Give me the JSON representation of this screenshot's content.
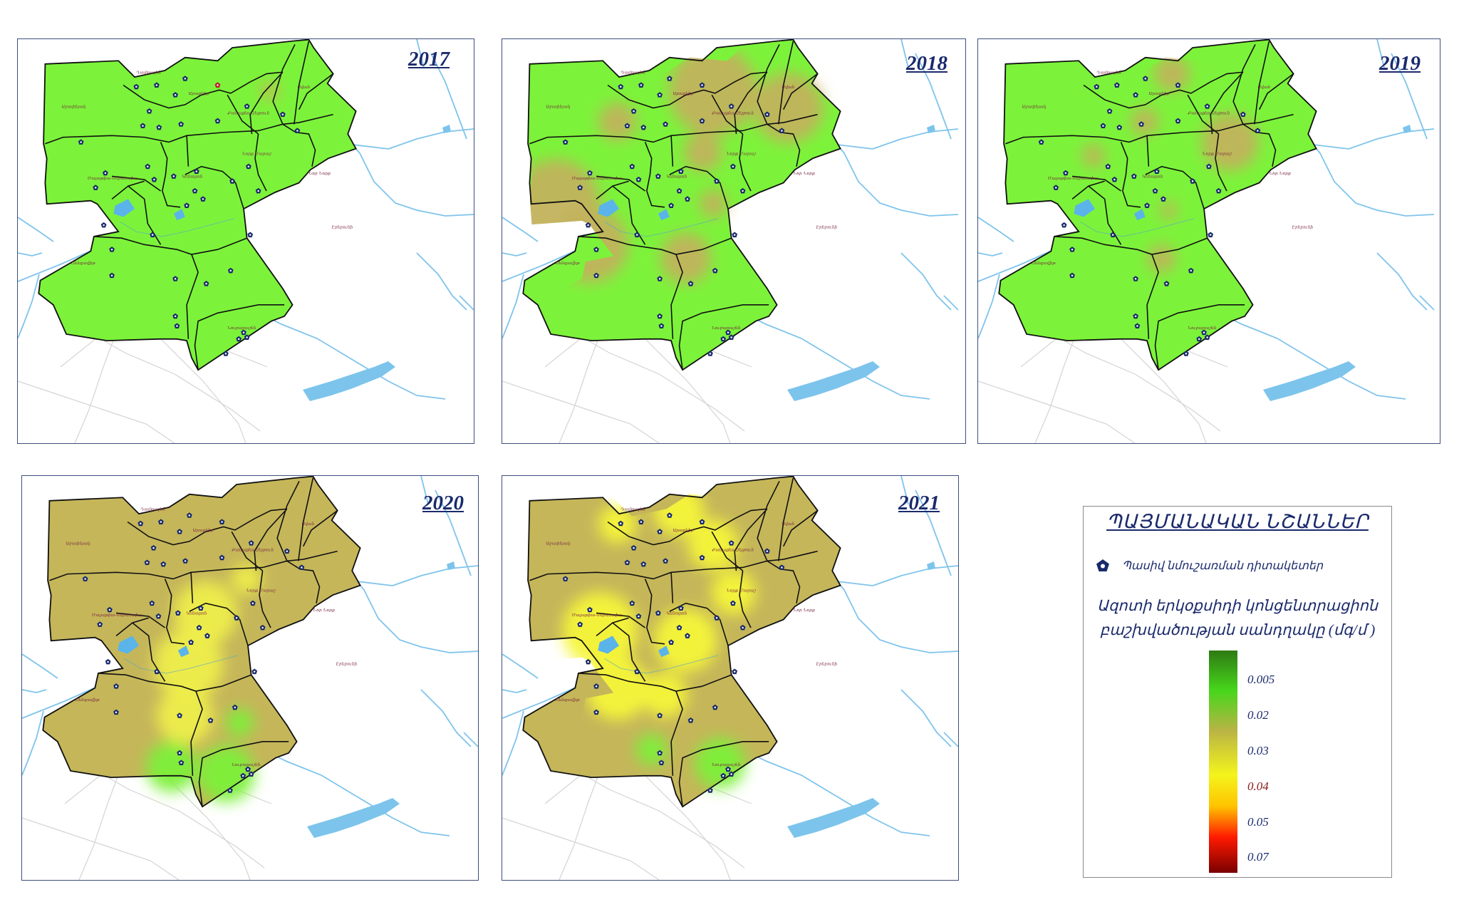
{
  "panels": [
    {
      "year": "2017",
      "base": "#7cf33a",
      "blobs": [
        [
          0.7,
          0.15,
          14,
          "#c8b45a"
        ]
      ],
      "redSensor": true
    },
    {
      "year": "2018",
      "base": "#7cf33a",
      "blobs": [
        [
          0.58,
          0.15,
          70,
          "#c2b25c"
        ],
        [
          0.8,
          0.2,
          55,
          "#c2b25c"
        ],
        [
          0.3,
          0.24,
          30,
          "#c2b25c"
        ],
        [
          0.12,
          0.48,
          70,
          "#c2b25c"
        ],
        [
          0.22,
          0.6,
          60,
          "#c2b25c"
        ],
        [
          0.55,
          0.33,
          30,
          "#c2b25c"
        ],
        [
          0.58,
          0.48,
          22,
          "#c2b25c"
        ],
        [
          0.5,
          0.64,
          40,
          "#c2b25c"
        ]
      ],
      "redSensor": false
    },
    {
      "year": "2019",
      "base": "#7cf33a",
      "blobs": [
        [
          0.53,
          0.1,
          28,
          "#c2b25c"
        ],
        [
          0.45,
          0.24,
          22,
          "#c2b25c"
        ],
        [
          0.7,
          0.3,
          45,
          "#c2b25c"
        ],
        [
          0.3,
          0.34,
          18,
          "#c2b25c"
        ],
        [
          0.52,
          0.5,
          14,
          "#c2b25c"
        ],
        [
          0.5,
          0.64,
          22,
          "#c2b25c"
        ]
      ],
      "redSensor": false
    },
    {
      "year": "2020",
      "base": "#c5b65a",
      "blobs": [
        [
          0.5,
          0.4,
          50,
          "#eeee4c"
        ],
        [
          0.45,
          0.55,
          55,
          "#eeee4c"
        ],
        [
          0.44,
          0.7,
          45,
          "#eeee4c"
        ],
        [
          0.62,
          0.3,
          24,
          "#eeee4c"
        ],
        [
          0.4,
          0.85,
          40,
          "#7cf03a"
        ],
        [
          0.56,
          0.87,
          45,
          "#7cf03a"
        ],
        [
          0.6,
          0.72,
          22,
          "#7cf03a"
        ]
      ],
      "redSensor": false
    },
    {
      "year": "2021",
      "base": "#c5b65a",
      "blobs": [
        [
          0.48,
          0.1,
          40,
          "#f6f63a"
        ],
        [
          0.3,
          0.14,
          30,
          "#f6f63a"
        ],
        [
          0.58,
          0.2,
          40,
          "#f6f63a"
        ],
        [
          0.64,
          0.34,
          35,
          "#f6f63a"
        ],
        [
          0.25,
          0.45,
          60,
          "#f6f63a"
        ],
        [
          0.5,
          0.48,
          50,
          "#f6f63a"
        ],
        [
          0.3,
          0.62,
          50,
          "#f6f63a"
        ],
        [
          0.44,
          0.64,
          35,
          "#f6f63a"
        ],
        [
          0.4,
          0.8,
          25,
          "#7cf03a"
        ],
        [
          0.6,
          0.84,
          40,
          "#7cf03a"
        ]
      ],
      "redSensor": false
    }
  ],
  "districts": [
    "Աջափնյակ",
    "Դավթաշեն",
    "Արաբկիր",
    "Քանաքեռ-Զեյթուն",
    "Ավան",
    "Նոր Նորք",
    "Մալաթիա-Սեբաստիա",
    "Կենտրոն",
    "Նորք Մարաշ",
    "Էրեբունի",
    "Շենգավիթ",
    "Նուբարաշեն"
  ],
  "legend": {
    "title": "ՊԱՅՄԱՆԱԿԱՆ ՆՇԱՆՆԵՐ",
    "sensor_label": "Պասիվ նմուշառման դիտակետեր",
    "conc_title_line1": "Ազոտի երկօքսիդի կոնցենտրացիոն",
    "conc_title_line2": "բաշխվածության սանդղակը (մգ/մ  )",
    "ticks": [
      "0.005",
      "0.02",
      "0.03",
      "0.04",
      "0.05",
      "0.07"
    ],
    "gradient_colors": [
      "#2e7a12",
      "#47d61c",
      "#b9b445",
      "#f4f41c",
      "#ffc400",
      "#ff1a00",
      "#7a0000"
    ],
    "marker_color": "#1a2a6c"
  }
}
